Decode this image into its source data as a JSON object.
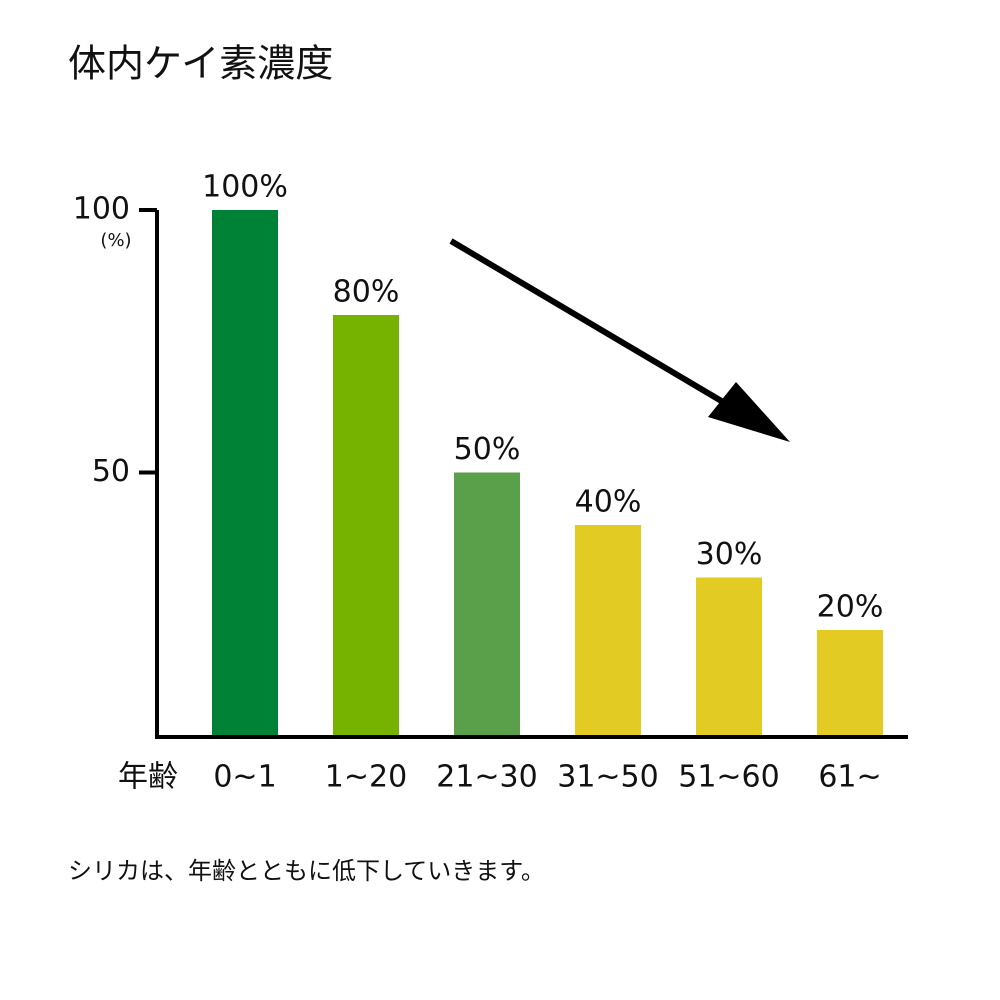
{
  "chart_data": {
    "type": "bar",
    "title": "体内ケイ素濃度",
    "categories": [
      "0~1",
      "1~20",
      "21~30",
      "31~50",
      "51~60",
      "61~"
    ],
    "values": [
      100,
      80,
      50,
      40,
      30,
      20
    ],
    "value_labels": [
      "100%",
      "80%",
      "50%",
      "40%",
      "30%",
      "20%"
    ],
    "colors": [
      "#008236",
      "#76b200",
      "#5aa04a",
      "#e2cb22",
      "#e2cb22",
      "#e2cb22"
    ],
    "ylim": [
      0,
      100
    ],
    "yticks": [
      50,
      100
    ],
    "y_unit": "(%)",
    "x_label": "年齢",
    "caption": "シリカは、年齢とともに低下していきます。"
  }
}
